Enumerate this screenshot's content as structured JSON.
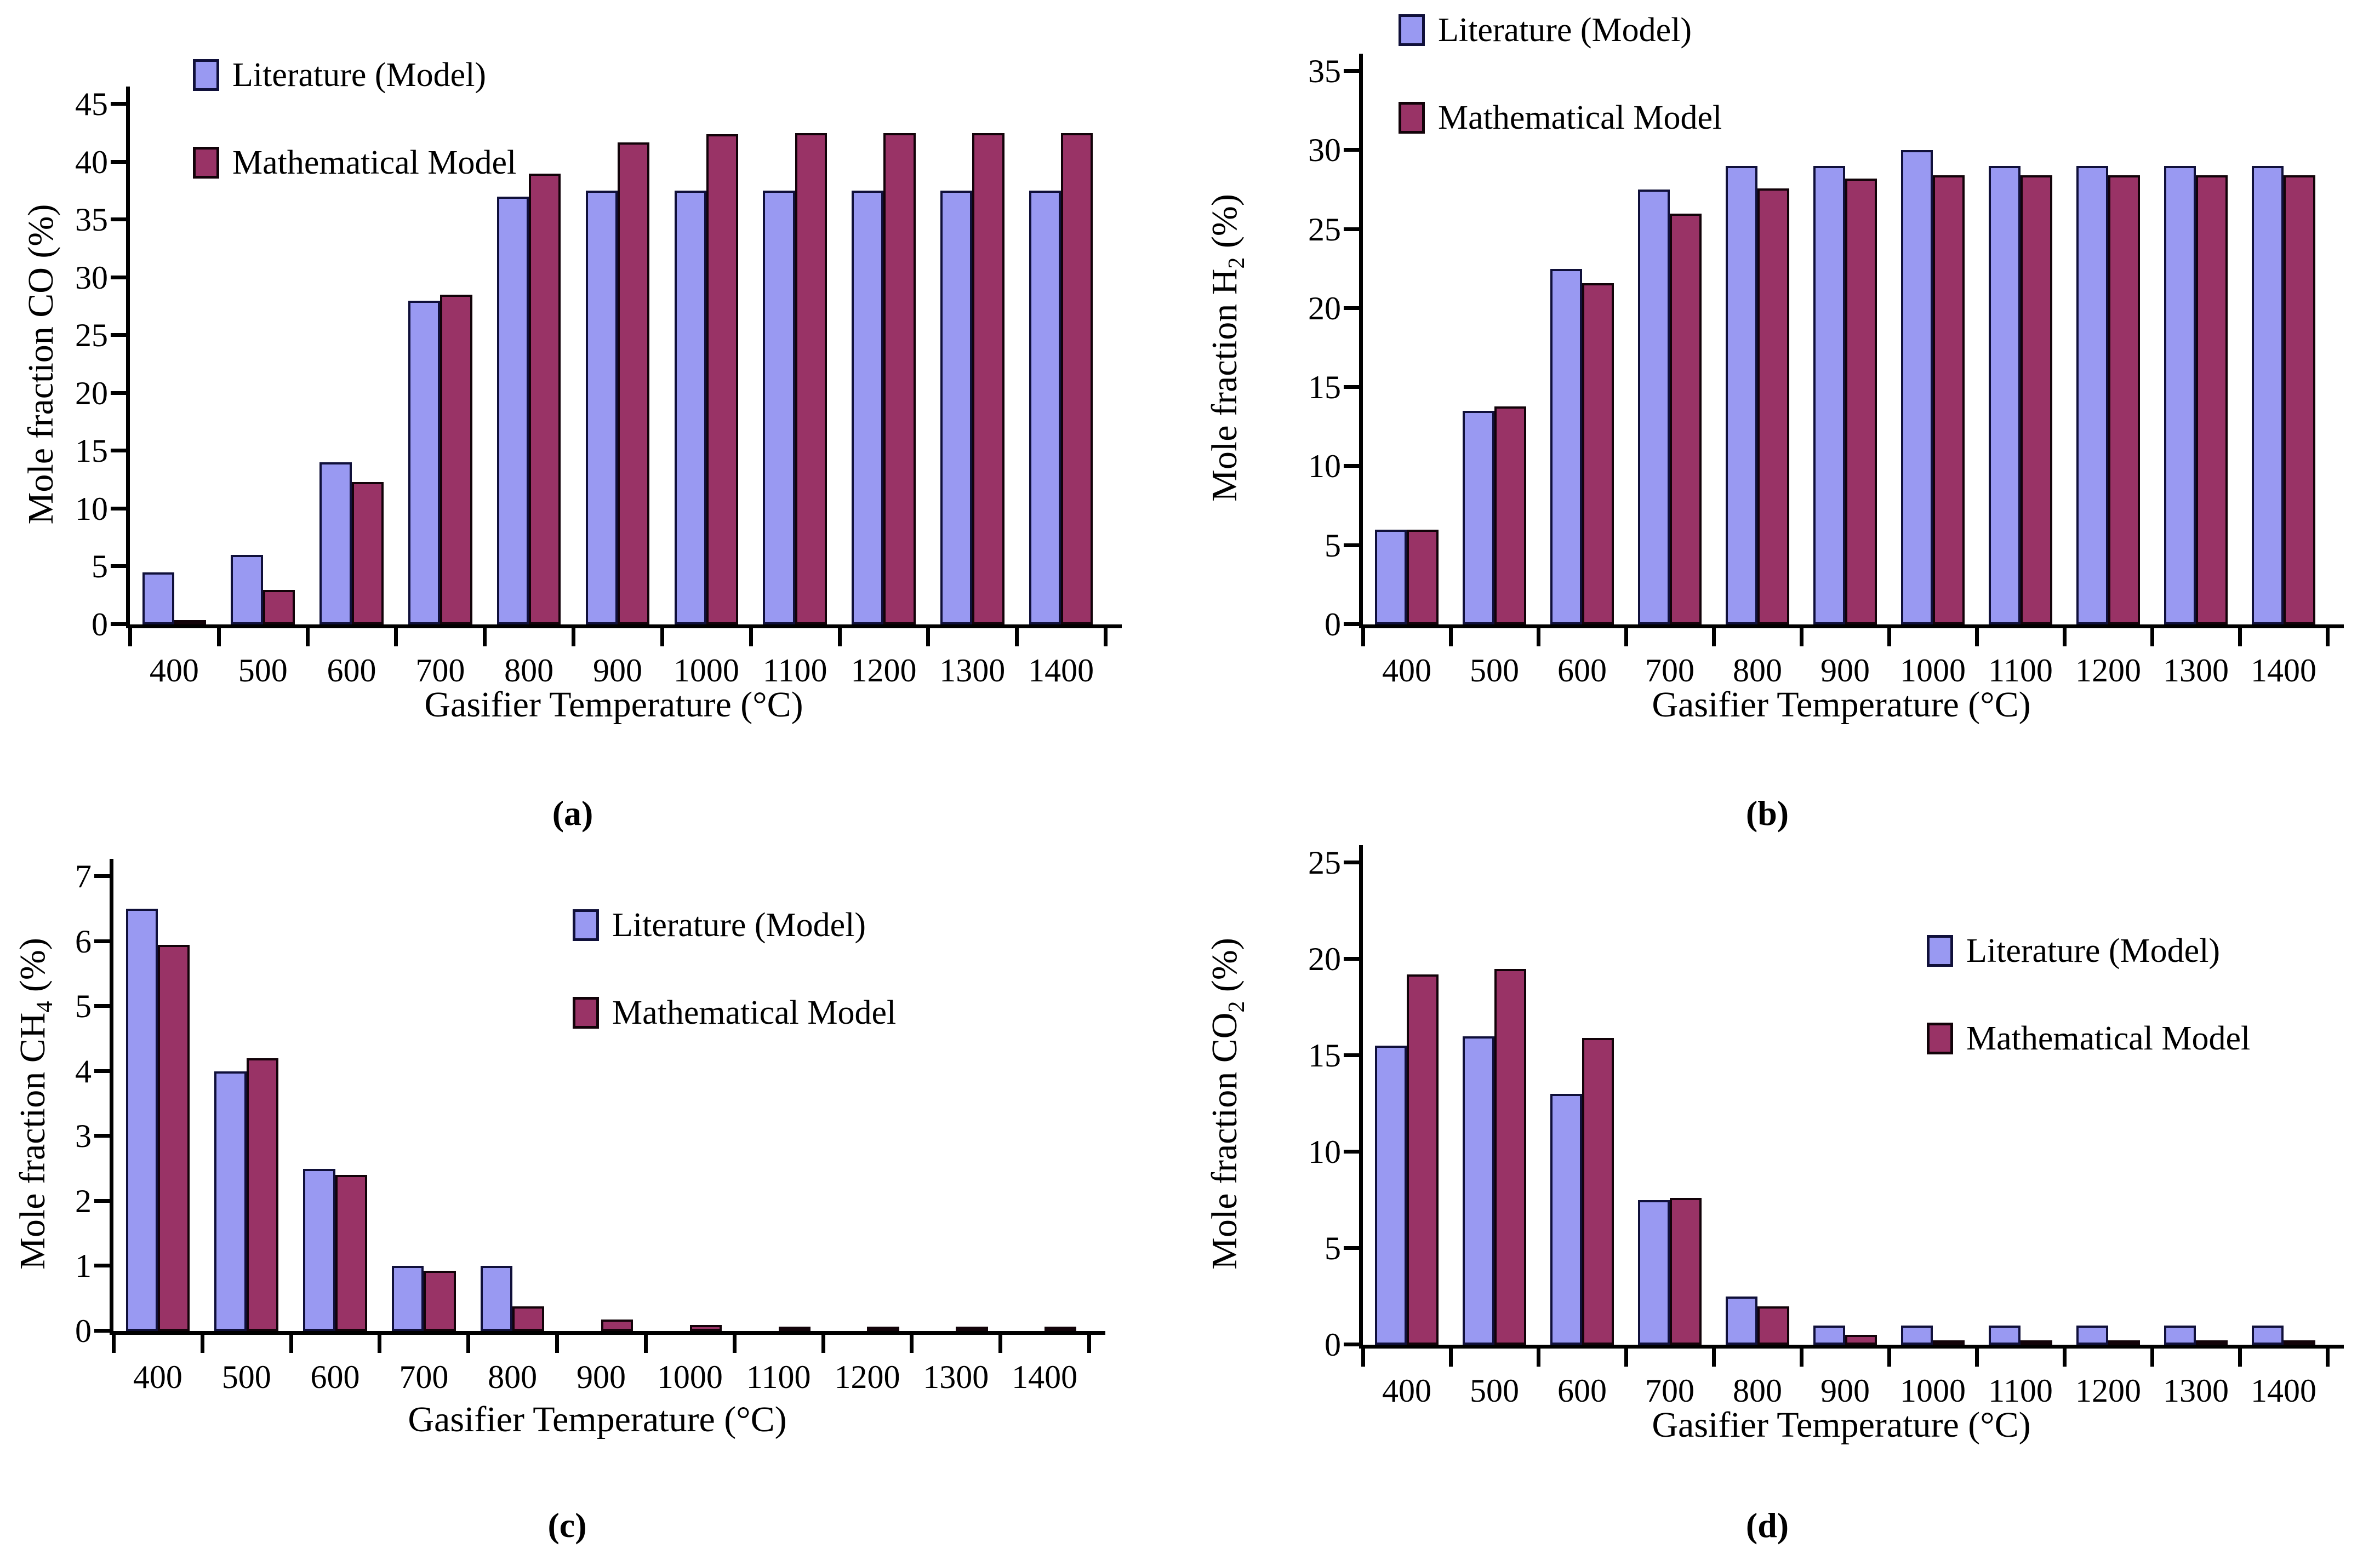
{
  "legend": {
    "literature": "Literature (Model)",
    "mathematical": "Mathematical Model"
  },
  "colors": {
    "literature_fill": "#9999f2",
    "literature_border": "#10103a",
    "mathematical_fill": "#993366",
    "mathematical_border": "#120309",
    "axis": "#000000"
  },
  "chart_data": [
    {
      "type": "bar",
      "letter": "(a)",
      "ylabel_pre": "Mole fraction CO",
      "ylabel_sub": "",
      "ylabel_post": " (%)",
      "xlabel": "Gasifier Temperature (°C)",
      "ylim": [
        0,
        45
      ],
      "ystep": 5,
      "grid": false,
      "legend_position": "top-left",
      "categories": [
        "400",
        "500",
        "600",
        "700",
        "800",
        "900",
        "1000",
        "1100",
        "1200",
        "1300",
        "1400"
      ],
      "series": [
        {
          "name": "Literature (Model)",
          "values": [
            4.5,
            6,
            14,
            28,
            37,
            37.5,
            37.5,
            37.5,
            37.5,
            37.5,
            37.5
          ]
        },
        {
          "name": "Mathematical Model",
          "values": [
            0.3,
            3,
            12.3,
            28.5,
            39,
            41.7,
            42.4,
            42.5,
            42.5,
            42.5,
            42.5
          ]
        }
      ]
    },
    {
      "type": "bar",
      "letter": "(b)",
      "ylabel_pre": "Mole fraction H",
      "ylabel_sub": "2",
      "ylabel_post": " (%)",
      "xlabel": "Gasifier Temperature (°C)",
      "ylim": [
        0,
        35
      ],
      "ystep": 5,
      "grid": false,
      "legend_position": "top-left",
      "categories": [
        "400",
        "500",
        "600",
        "700",
        "800",
        "900",
        "1000",
        "1100",
        "1200",
        "1300",
        "1400"
      ],
      "series": [
        {
          "name": "Literature (Model)",
          "values": [
            6,
            13.5,
            22.5,
            27.5,
            29,
            29,
            30,
            29,
            29,
            29,
            29
          ]
        },
        {
          "name": "Mathematical Model",
          "values": [
            6,
            13.8,
            21.6,
            26,
            27.6,
            28.2,
            28.4,
            28.4,
            28.4,
            28.4,
            28.4
          ]
        }
      ]
    },
    {
      "type": "bar",
      "letter": "(c)",
      "ylabel_pre": "Mole fraction CH",
      "ylabel_sub": "4",
      "ylabel_post": " (%)",
      "xlabel": "Gasifier Temperature (°C)",
      "ylim": [
        0,
        7
      ],
      "ystep": 1,
      "grid": false,
      "legend_position": "top-right",
      "categories": [
        "400",
        "500",
        "600",
        "700",
        "800",
        "900",
        "1000",
        "1100",
        "1200",
        "1300",
        "1400"
      ],
      "series": [
        {
          "name": "Literature (Model)",
          "values": [
            6.5,
            4,
            2.5,
            1,
            1,
            0,
            0,
            0,
            0,
            0,
            0
          ]
        },
        {
          "name": "Mathematical Model",
          "values": [
            5.95,
            4.2,
            2.4,
            0.93,
            0.38,
            0.18,
            0.09,
            0.07,
            0.04,
            0.04,
            0.04
          ]
        }
      ]
    },
    {
      "type": "bar",
      "letter": "(d)",
      "ylabel_pre": "Mole fraction CO",
      "ylabel_sub": "2",
      "ylabel_post": " (%)",
      "xlabel": "Gasifier Temperature (°C)",
      "ylim": [
        0,
        25
      ],
      "ystep": 5,
      "grid": false,
      "legend_position": "top-right",
      "categories": [
        "400",
        "500",
        "600",
        "700",
        "800",
        "900",
        "1000",
        "1100",
        "1200",
        "1300",
        "1400"
      ],
      "series": [
        {
          "name": "Literature (Model)",
          "values": [
            15.5,
            16,
            13,
            7.5,
            2.5,
            1,
            1,
            1,
            1,
            1,
            1
          ]
        },
        {
          "name": "Mathematical Model",
          "values": [
            19.2,
            19.5,
            15.9,
            7.6,
            2,
            0.5,
            0.12,
            0.12,
            0.12,
            0.12,
            0.12
          ]
        }
      ]
    }
  ]
}
